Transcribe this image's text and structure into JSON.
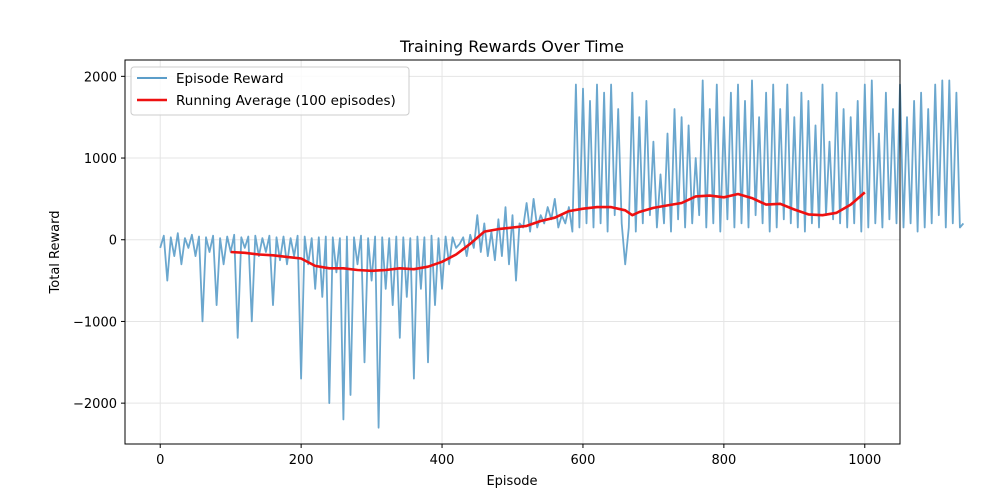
{
  "chart_data": {
    "type": "line",
    "title": "Training Rewards Over Time",
    "xlabel": "Episode",
    "ylabel": "Total Reward",
    "xlim": [
      -50,
      1050
    ],
    "ylim": [
      -2500,
      2200
    ],
    "xticks": [
      0,
      200,
      400,
      600,
      800,
      1000
    ],
    "yticks": [
      -2000,
      -1000,
      0,
      1000,
      2000
    ],
    "grid": true,
    "legend_position": "upper-left",
    "series": [
      {
        "name": "Episode Reward",
        "color": "#5b9dc9",
        "x_start": 0,
        "x_step": 5,
        "values": [
          -100,
          50,
          -500,
          30,
          -200,
          80,
          -300,
          20,
          -100,
          60,
          -200,
          40,
          -1000,
          30,
          -150,
          50,
          -800,
          20,
          -300,
          40,
          -150,
          60,
          -1200,
          30,
          -100,
          40,
          -1000,
          50,
          -200,
          20,
          -150,
          50,
          -800,
          30,
          -250,
          40,
          -300,
          20,
          -200,
          50,
          -1700,
          40,
          -300,
          20,
          -600,
          30,
          -700,
          40,
          -2000,
          30,
          -400,
          20,
          -2200,
          40,
          -1900,
          30,
          -300,
          50,
          -1500,
          20,
          -500,
          40,
          -2300,
          30,
          -600,
          20,
          -800,
          40,
          -1200,
          30,
          -700,
          20,
          -1700,
          40,
          -600,
          30,
          -1500,
          50,
          -800,
          20,
          -600,
          40,
          -300,
          30,
          -100,
          -50,
          30,
          -200,
          60,
          -100,
          300,
          -150,
          200,
          -200,
          100,
          -250,
          250,
          -200,
          400,
          -300,
          300,
          -500,
          200,
          150,
          450,
          100,
          500,
          150,
          300,
          200,
          400,
          250,
          500,
          150,
          300,
          200,
          400,
          100,
          1900,
          150,
          1850,
          200,
          1700,
          150,
          1900,
          200,
          1800,
          100,
          1900,
          300,
          1600,
          200,
          -300,
          150,
          1800,
          100,
          1500,
          200,
          1700,
          300,
          1200,
          150,
          800,
          200,
          1300,
          100,
          1600,
          250,
          1500,
          150,
          1400,
          200,
          1000,
          300,
          1950,
          150,
          1600,
          200,
          1900,
          100,
          1500,
          250,
          1800,
          150,
          1900,
          200,
          1700,
          150,
          1950,
          300,
          1500,
          200,
          1800,
          100,
          1900,
          150,
          1600,
          250,
          1900,
          200,
          1500,
          150,
          1800,
          100,
          1700,
          200,
          1400,
          150,
          1900,
          300,
          1200,
          250,
          1800,
          200,
          1600,
          150,
          1500,
          200,
          1700,
          100,
          1900,
          150,
          1950,
          200,
          1300,
          150,
          1800,
          250,
          1600,
          200,
          1900,
          150,
          1500,
          200,
          1700,
          100,
          1800,
          150,
          1600,
          200,
          1900,
          300,
          1950,
          150,
          1950,
          200,
          1800,
          150,
          200
        ]
      },
      {
        "name": "Running Average (100 episodes)",
        "color": "#ee1111",
        "x": [
          100,
          120,
          140,
          160,
          180,
          200,
          220,
          240,
          260,
          280,
          300,
          320,
          340,
          360,
          380,
          400,
          420,
          440,
          460,
          480,
          500,
          520,
          540,
          560,
          580,
          600,
          620,
          640,
          660,
          670,
          680,
          700,
          720,
          740,
          760,
          780,
          800,
          820,
          840,
          860,
          880,
          900,
          920,
          940,
          960,
          980,
          1000
        ],
        "values": [
          -150,
          -160,
          -180,
          -190,
          -210,
          -230,
          -320,
          -350,
          -350,
          -370,
          -380,
          -370,
          -350,
          -360,
          -330,
          -270,
          -180,
          -50,
          100,
          130,
          150,
          170,
          230,
          270,
          350,
          380,
          400,
          400,
          360,
          300,
          340,
          390,
          420,
          450,
          530,
          540,
          520,
          560,
          510,
          430,
          440,
          370,
          310,
          300,
          330,
          430,
          580
        ]
      }
    ]
  }
}
